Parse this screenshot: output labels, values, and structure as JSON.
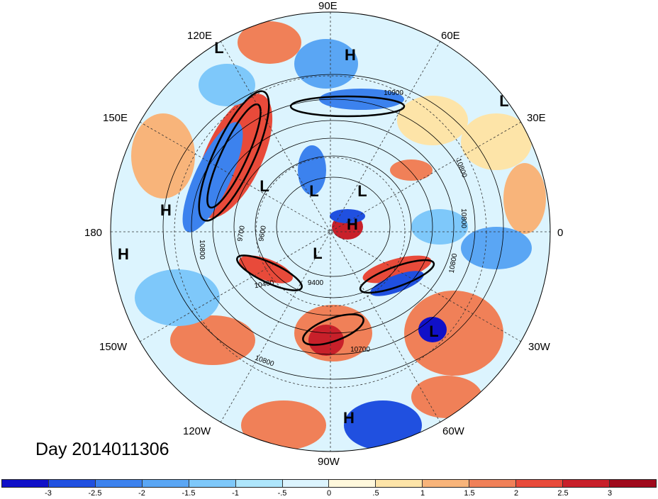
{
  "date_label": "Day 2014011306",
  "lon_labels": {
    "n90e": "90E",
    "n60e": "60E",
    "n30e": "30E",
    "e0": "0",
    "w30": "30W",
    "w60": "60W",
    "s90w": "90W",
    "w120": "120W",
    "w150": "150W",
    "w180": "180",
    "e150": "150E",
    "e120": "120E"
  },
  "pressure_systems": [
    {
      "label": "H"
    },
    {
      "label": "H"
    },
    {
      "label": "H"
    },
    {
      "label": "H"
    },
    {
      "label": "H"
    },
    {
      "label": "L"
    },
    {
      "label": "L"
    },
    {
      "label": "L"
    },
    {
      "label": "L"
    },
    {
      "label": "L"
    },
    {
      "label": "L"
    },
    {
      "label": "L"
    }
  ],
  "contour_labels": [
    "10900",
    "10800",
    "10800",
    "10800",
    "10800",
    "9700",
    "9600",
    "10400",
    "9400",
    "10700",
    "10800"
  ],
  "colorbar": {
    "colors": [
      "#1010c8",
      "#2050e0",
      "#3c82ee",
      "#5aa6f4",
      "#7ec8fa",
      "#aee6fc",
      "#dcf4fe",
      "#fff8dc",
      "#fde4a8",
      "#f8b47a",
      "#f08058",
      "#e84a3a",
      "#c8202a",
      "#a00a1c"
    ],
    "ticks": [
      "-3",
      "-2.5",
      "-2",
      "-1.5",
      "-1",
      "-.5",
      "0",
      ".5",
      "1",
      "1.5",
      "2",
      "2.5",
      "3"
    ]
  }
}
